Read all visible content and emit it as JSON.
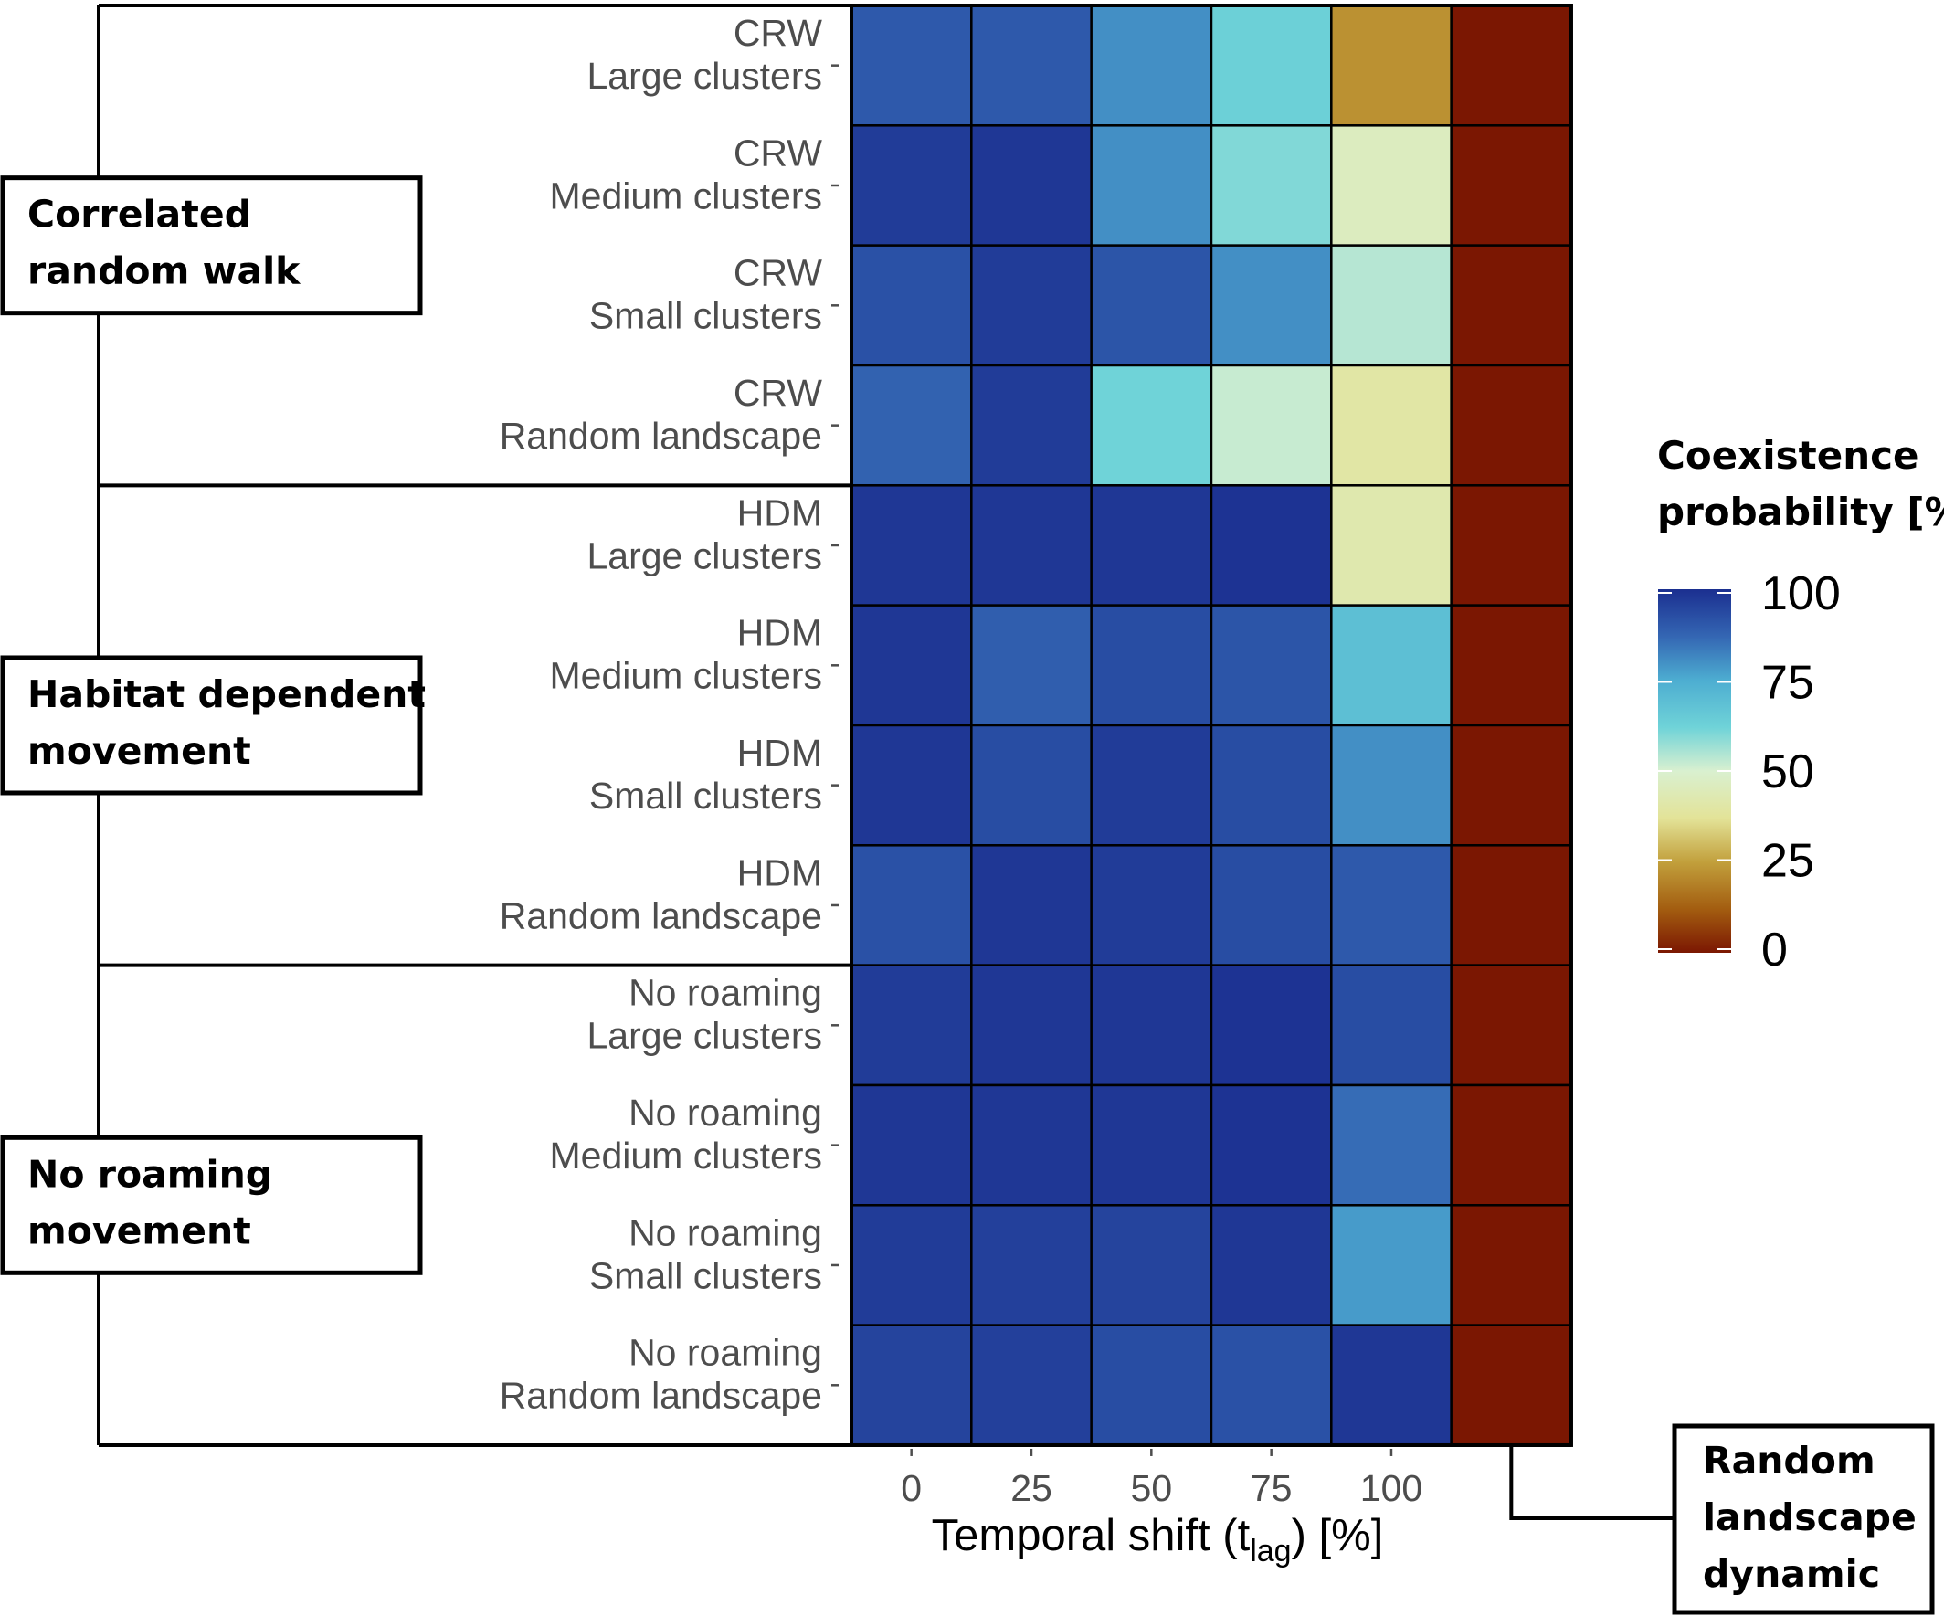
{
  "chart_data": {
    "type": "heatmap",
    "groups": [
      {
        "label_lines": [
          "Correlated",
          "random walk"
        ],
        "code": "CRW"
      },
      {
        "label_lines": [
          "Habitat dependent",
          "movement"
        ],
        "code": "HDM"
      },
      {
        "label_lines": [
          "No roaming",
          "movement"
        ],
        "code": "No roaming"
      }
    ],
    "rows": [
      {
        "line1": "CRW",
        "line2": "Large clusters"
      },
      {
        "line1": "CRW",
        "line2": "Medium clusters"
      },
      {
        "line1": "CRW",
        "line2": "Small clusters"
      },
      {
        "line1": "CRW",
        "line2": "Random landscape"
      },
      {
        "line1": "HDM",
        "line2": "Large clusters"
      },
      {
        "line1": "HDM",
        "line2": "Medium clusters"
      },
      {
        "line1": "HDM",
        "line2": "Small clusters"
      },
      {
        "line1": "HDM",
        "line2": "Random landscape"
      },
      {
        "line1": "No roaming",
        "line2": "Large clusters"
      },
      {
        "line1": "No roaming",
        "line2": "Medium clusters"
      },
      {
        "line1": "No roaming",
        "line2": "Small clusters"
      },
      {
        "line1": "No roaming",
        "line2": "Random landscape"
      }
    ],
    "columns": [
      "0",
      "25",
      "50",
      "75",
      "100",
      "Random landscape dynamic"
    ],
    "x_tick_labels": [
      "0",
      "25",
      "50",
      "75",
      "100"
    ],
    "values": [
      [
        90,
        90,
        80,
        63,
        22,
        0
      ],
      [
        97,
        98,
        80,
        60,
        46,
        0
      ],
      [
        92,
        97,
        91,
        80,
        54,
        0
      ],
      [
        88,
        97,
        62,
        52,
        40,
        0
      ],
      [
        98,
        98,
        98,
        99,
        42,
        0
      ],
      [
        98,
        89,
        93,
        91,
        69,
        0
      ],
      [
        98,
        93,
        97,
        93,
        80,
        0
      ],
      [
        92,
        98,
        97,
        93,
        90,
        0
      ],
      [
        97,
        98,
        98,
        99,
        93,
        0
      ],
      [
        98,
        98,
        98,
        99,
        86,
        0
      ],
      [
        97,
        96,
        95,
        98,
        78,
        0
      ],
      [
        95,
        96,
        93,
        92,
        98,
        0
      ]
    ],
    "xlabel": {
      "main": "Temporal shift (t",
      "sub": "lag",
      "end": ") [%]"
    },
    "legend": {
      "title_lines": [
        "Coexistence",
        "probability [%]"
      ],
      "ticks": [
        100,
        75,
        50,
        25,
        0
      ],
      "range": [
        0,
        100
      ],
      "stops": [
        {
          "value": 0,
          "color": "#7b1702"
        },
        {
          "value": 12,
          "color": "#a35d10"
        },
        {
          "value": 25,
          "color": "#c2a03c"
        },
        {
          "value": 37,
          "color": "#e3e398"
        },
        {
          "value": 50,
          "color": "#d9f0d0"
        },
        {
          "value": 62,
          "color": "#6fd3d8"
        },
        {
          "value": 75,
          "color": "#4dadd1"
        },
        {
          "value": 87,
          "color": "#3466b3"
        },
        {
          "value": 100,
          "color": "#1b2f90"
        }
      ]
    },
    "extra_annotation_lines": [
      "Random",
      "landscape",
      "dynamic"
    ]
  }
}
